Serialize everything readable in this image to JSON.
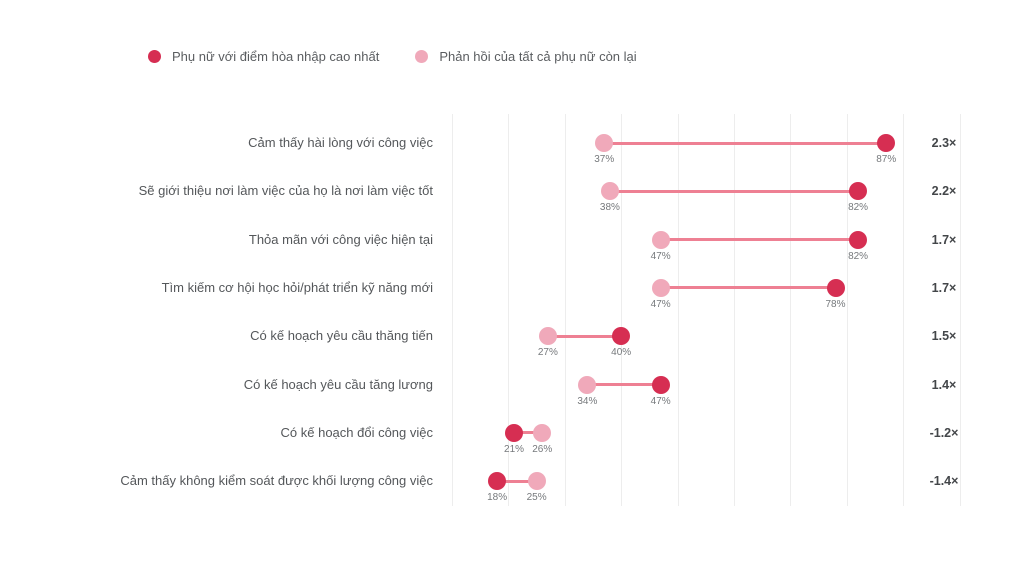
{
  "legend": {
    "series_highest": {
      "label": "Phụ nữ với điểm hòa nhập cao nhất",
      "color": "#d62e52"
    },
    "series_others": {
      "label": "Phản hồi của tất cả phụ nữ còn lại",
      "color": "#f0a9ba"
    }
  },
  "colors": {
    "dot_highest": "#d62e52",
    "dot_others": "#f0a9ba",
    "connector": "#ee8093",
    "gridline": "#ededed"
  },
  "chart_data": {
    "type": "dumbbell",
    "categories": [
      "Cảm thấy hài lòng với công việc",
      "Sẽ giới thiệu nơi làm việc của họ là nơi làm việc tốt",
      "Thỏa mãn với công việc hiện tại",
      "Tìm kiếm cơ hội học hỏi/phát triển kỹ năng mới",
      "Có kế hoạch yêu cầu thăng tiến",
      "Có kế hoạch yêu cầu tăng lương",
      "Có kế hoạch đổi công việc",
      "Cảm thấy không kiểm soát được khối lượng công việc"
    ],
    "series": [
      {
        "name": "Phụ nữ với điểm hòa nhập cao nhất",
        "values": [
          87,
          82,
          82,
          78,
          40,
          47,
          21,
          18
        ]
      },
      {
        "name": "Phản hồi của tất cả phụ nữ còn lại",
        "values": [
          37,
          38,
          47,
          47,
          27,
          34,
          26,
          25
        ]
      }
    ],
    "value_labels": {
      "highest": [
        "87%",
        "82%",
        "82%",
        "78%",
        "40%",
        "47%",
        "21%",
        "18%"
      ],
      "others": [
        "37%",
        "38%",
        "47%",
        "47%",
        "27%",
        "34%",
        "26%",
        "25%"
      ]
    },
    "multipliers": [
      "2.3×",
      "2.2×",
      "1.7×",
      "1.7×",
      "1.5×",
      "1.4×",
      "-1.2×",
      "-1.4×"
    ],
    "axis": {
      "min": 10,
      "max": 100,
      "gridline_step": 10,
      "unit": "%",
      "grid": true
    },
    "title": "",
    "legend_position": "top"
  }
}
